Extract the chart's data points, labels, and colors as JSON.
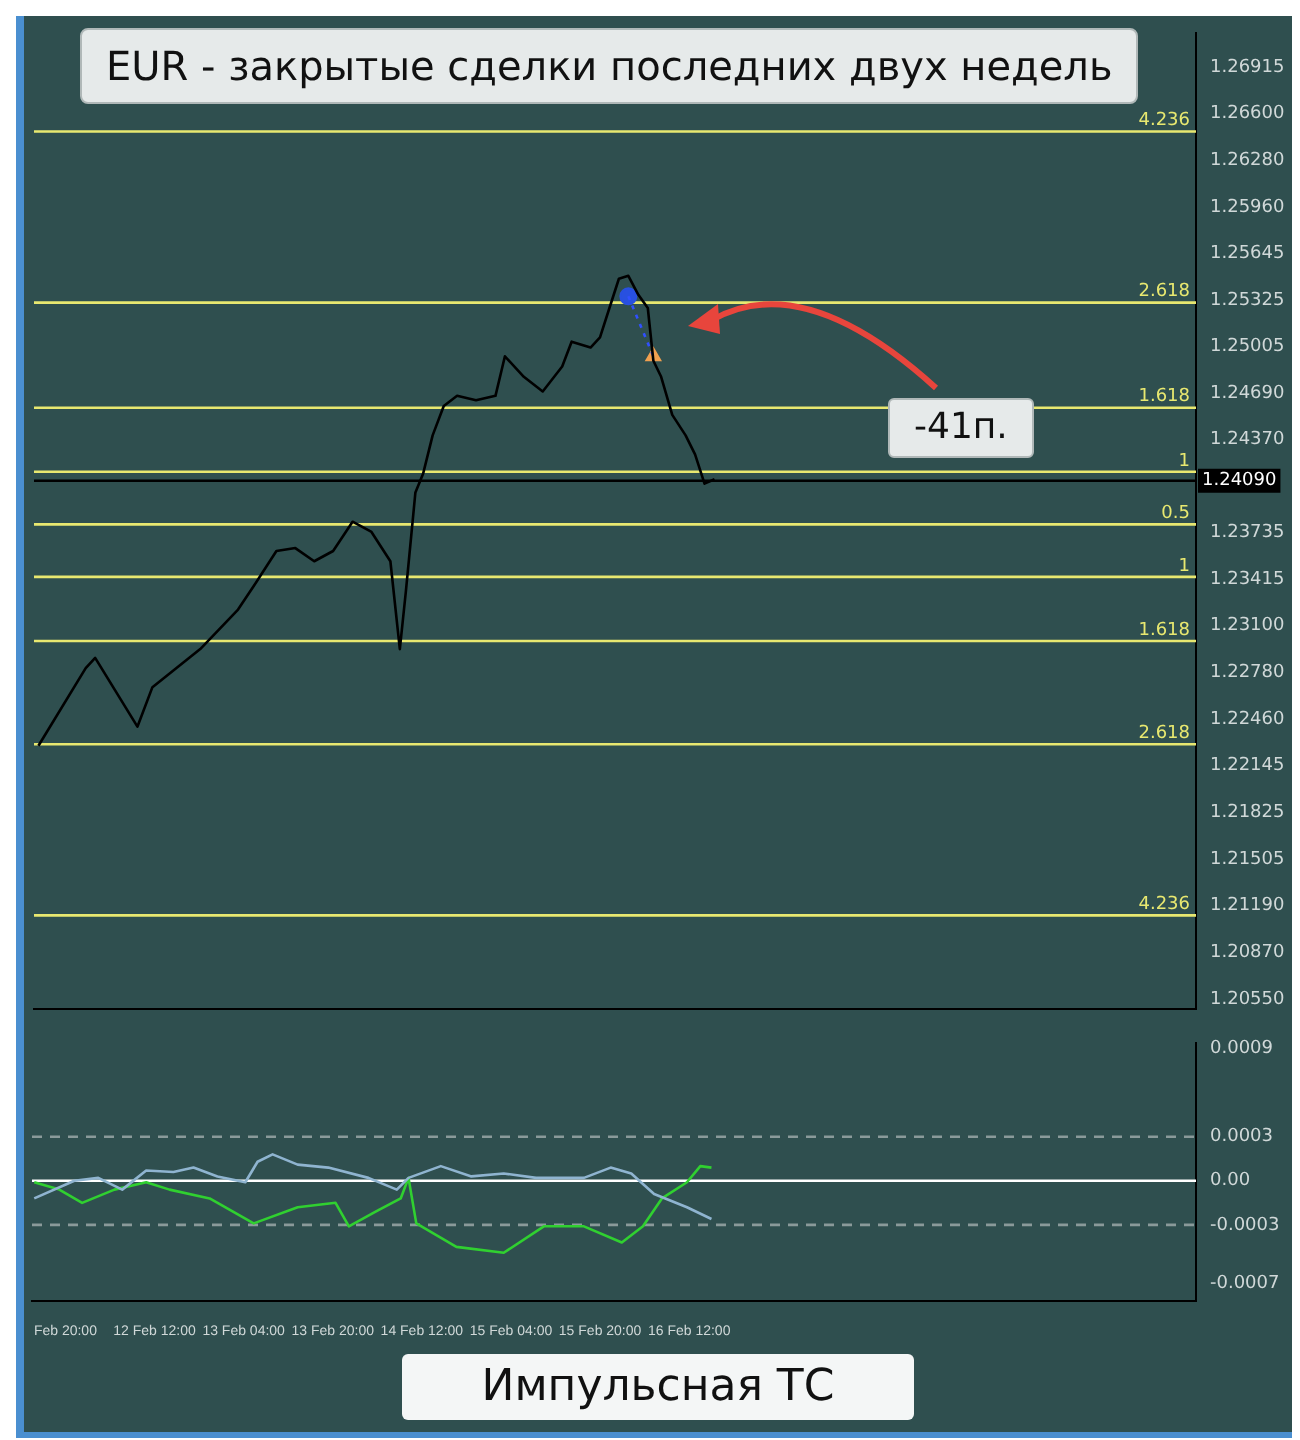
{
  "chart_data": [
    {
      "type": "line",
      "title": "EUR - закрытые сделки последних двух недель",
      "annotations": [
        "-41п.",
        {
          "text": "4.236",
          "x": "--02-20T07:00",
          "y": 1.26476
        },
        {
          "text": "2.618",
          "x": "--02-20T07:00",
          "y": 1.25307
        },
        {
          "text": "1.618",
          "x": "--02-20T07:00",
          "y": 1.24589
        },
        {
          "text": "1",
          "x": "--02-20T07:00",
          "y": 1.24151
        },
        {
          "text": "0.5",
          "x": "--02-20T07:00",
          "y": 1.23792
        },
        {
          "text": "1",
          "x": "--02-20T07:00",
          "y": 1.23433
        },
        {
          "text": "1.618",
          "x": "--02-20T07:00",
          "y": 1.22995
        },
        {
          "text": "2.618",
          "x": "--02-20T07:00",
          "y": 1.2229
        },
        {
          "text": "4.236",
          "x": "--02-20T07:00",
          "y": 1.21121
        }
      ],
      "xlim": [
        "--02-11T14:00",
        "--02-20T07:00"
      ],
      "ylim": [
        1.2048,
        1.2715
      ],
      "yticks": [
        1.26915,
        {
          "value": 1.266,
          "label": "1.26600"
        },
        {
          "value": 1.2628,
          "label": "1.26280"
        },
        {
          "value": 1.2596,
          "label": "1.25960"
        },
        1.25645,
        1.25325,
        1.25005,
        {
          "value": 1.2469,
          "label": "1.24690"
        },
        {
          "value": 1.2437,
          "label": "1.24370"
        },
        1.23735,
        1.23415,
        {
          "value": 1.231,
          "label": "1.23100"
        },
        {
          "value": 1.2278,
          "label": "1.22780"
        },
        {
          "value": 1.2246,
          "label": "1.22460"
        },
        1.22145,
        1.21825,
        1.21505,
        {
          "value": 1.2119,
          "label": "1.21190"
        },
        {
          "value": 1.2087,
          "label": "1.20870"
        },
        {
          "value": 1.2055,
          "label": "1.20550"
        }
      ],
      "tick_labels": "y",
      "grid": false,
      "legend": false,
      "series": [
        {
          "color": "#000000",
          "marker": "none",
          "x": [
            "--02-11T14:48",
            "--02-11T23:18",
            "--02-12T01:00",
            "--02-12T08:36",
            "--02-12T11:18",
            "--02-12T19:54",
            "--02-13T02:42",
            "--02-13T06:12",
            "--02-13T09:36",
            "--02-13T13:00",
            "--02-13T16:24",
            "--02-13T19:48",
            "--02-13T23:18",
            "--02-14T02:42",
            "--02-14T06:06",
            "--02-14T07:48",
            "--02-14T08:54",
            "--02-14T10:36",
            "--02-14T12:00",
            "--02-14T13:42",
            "--02-14T15:42",
            "--02-14T18:06",
            "--02-14T21:30",
            "--02-15T01:00",
            "--02-15T02:42",
            "--02-15T06:06",
            "--02-15T09:30",
            "--02-15T13:00",
            "--02-15T14:42",
            "--02-15T18:06",
            "--02-15T19:48",
            "--02-15T21:30",
            "--02-15T23:12",
            "--02-16T00:54",
            "--02-16T02:42",
            "--02-16T04:24",
            "--02-16T05:24",
            "--02-16T06:48",
            "--02-16T08:48",
            "--02-16T11:12",
            "--02-16T12:54",
            "--02-16T14:36",
            "--02-16T16:24"
          ],
          "values": [
            1.2228,
            1.2281,
            1.2288,
            1.2241,
            1.2268,
            1.2294,
            1.2321,
            1.2341,
            1.2361,
            1.2363,
            1.2354,
            1.2361,
            1.2381,
            1.2374,
            1.2354,
            1.2294,
            1.2334,
            1.2401,
            1.2414,
            1.244,
            1.246,
            1.2467,
            1.2464,
            1.2467,
            1.2494,
            1.248,
            1.247,
            1.2487,
            1.2504,
            1.25,
            1.2507,
            1.2527,
            1.2547,
            1.2549,
            1.2536,
            1.2527,
            1.2491,
            1.248,
            1.2454,
            1.244,
            1.2427,
            1.2407,
            1.241
          ]
        },
        {
          "color": "#3050ff",
          "line_style": "dotted",
          "marker": "none",
          "x": [
            "--02-16T00:54",
            "--02-16T05:24"
          ],
          "values": [
            1.2535,
            1.2494
          ]
        },
        {
          "type": "scatter",
          "color": "#2850e0",
          "marker": "circle",
          "x": [
            "--02-16T00:54"
          ],
          "values": [
            1.2535
          ]
        },
        {
          "type": "scatter",
          "color": "#f0a050",
          "marker": "triangle",
          "x": [
            "--02-16T05:24"
          ],
          "values": [
            1.2494
          ]
        }
      ],
      "ref_lines": [
        {
          "axis": "y",
          "value": 1.26476,
          "color": "#e8e870"
        },
        {
          "axis": "y",
          "value": 1.25307,
          "color": "#e8e870"
        },
        {
          "axis": "y",
          "value": 1.24589,
          "color": "#e8e870"
        },
        {
          "axis": "y",
          "value": 1.24151,
          "color": "#e8e870"
        },
        {
          "axis": "y",
          "value": 1.23792,
          "color": "#e8e870"
        },
        {
          "axis": "y",
          "value": 1.23433,
          "color": "#e8e870"
        },
        {
          "axis": "y",
          "value": 1.22995,
          "color": "#e8e870"
        },
        {
          "axis": "y",
          "value": 1.2229,
          "color": "#e8e870"
        },
        {
          "axis": "y",
          "value": 1.21121,
          "color": "#e8e870"
        },
        {
          "axis": "y",
          "value": 1.2409,
          "label": "1.24090",
          "color": "#000000"
        }
      ]
    },
    {
      "type": "line",
      "annotations": [
        "Импульсная ТС"
      ],
      "xlim": [
        "--02-11T14:00",
        "--02-20T07:00"
      ],
      "xticks": [
        {
          "value": "--02-11T20:00",
          "label": "Feb 20:00"
        },
        {
          "value": "--02-12T12:00",
          "label": "12 Feb 12:00"
        },
        {
          "value": "--02-13T04:00",
          "label": "13 Feb 04:00"
        },
        {
          "value": "--02-13T20:00",
          "label": "13 Feb 20:00"
        },
        {
          "value": "--02-14T12:00",
          "label": "14 Feb 12:00"
        },
        {
          "value": "--02-15T04:00",
          "label": "15 Feb 04:00"
        },
        {
          "value": "--02-15T20:00",
          "label": "15 Feb 20:00"
        },
        {
          "value": "--02-16T12:00",
          "label": "16 Feb 12:00"
        }
      ],
      "ylim": [
        -0.00082,
        0.00094
      ],
      "yticks": [
        0.0009,
        0.0003,
        {
          "value": 0,
          "label": "0.00"
        },
        -0.0003,
        -0.0007
      ],
      "grid": false,
      "legend": false,
      "series": [
        {
          "color": "#8fb4d0",
          "marker": "none",
          "x": [
            "--02-11T14:24",
            "--02-11T21:36",
            "--02-12T01:54",
            "--02-12T06:12",
            "--02-12T10:30",
            "--02-12T15:24",
            "--02-12T19:00",
            "--02-12T23:18",
            "--02-13T04:18",
            "--02-13T06:30",
            "--02-13T09:12",
            "--02-13T13:42",
            "--02-13T19:12",
            "--02-14T02:24",
            "--02-14T07:30",
            "--02-14T09:36",
            "--02-14T15:24",
            "--02-14T20:54",
            "--02-15T02:42",
            "--02-15T08:30",
            "--02-15T17:06",
            "--02-15T21:54",
            "--02-16T01:36",
            "--02-16T05:42",
            "--02-16T11:36",
            "--02-16T16:00"
          ],
          "values": [
            -0.00012,
            0.0,
            2e-05,
            -6e-05,
            7e-05,
            6e-05,
            9e-05,
            3e-05,
            -1e-05,
            0.00013,
            0.00018,
            0.00011,
            9e-05,
            2e-05,
            -6e-05,
            2e-05,
            0.0001,
            3e-05,
            5e-05,
            2e-05,
            2e-05,
            9e-05,
            5e-05,
            -9e-05,
            -0.00018,
            -0.00026
          ]
        },
        {
          "color": "#30d030",
          "marker": "none",
          "x": [
            "--02-11T14:24",
            "--02-11T18:54",
            "--02-11T23:00",
            "--02-12T04:48",
            "--02-12T10:30",
            "--02-12T14:42",
            "--02-12T21:54",
            "--02-13T05:48",
            "--02-13T13:42",
            "--02-13T20:30",
            "--02-13T22:54",
            "--02-14T03:42",
            "--02-14T08:12",
            "--02-14T09:36",
            "--02-14T11:00",
            "--02-14T18:12",
            "--02-15T02:42",
            "--02-15T09:54",
            "--02-15T17:06",
            "--02-15T23:54",
            "--02-16T03:42",
            "--02-16T07:06",
            "--02-16T11:36",
            "--02-16T14:00",
            "--02-16T16:00"
          ],
          "values": [
            -1e-05,
            -6e-05,
            -0.00015,
            -6e-05,
            -1e-05,
            -6e-05,
            -0.00012,
            -0.00029,
            -0.00018,
            -0.00015,
            -0.00031,
            -0.00021,
            -0.00012,
            2e-05,
            -0.00029,
            -0.00045,
            -0.00049,
            -0.00031,
            -0.00031,
            -0.00042,
            -0.00031,
            -0.00012,
            -1e-05,
            0.0001,
            9e-05
          ]
        }
      ],
      "ref_lines": [
        {
          "axis": "y",
          "value": 0.0003,
          "color": "#8a9a9a",
          "line_style": "dashed"
        },
        {
          "axis": "y",
          "value": 0,
          "color": "#ffffff"
        },
        {
          "axis": "y",
          "value": -0.0003,
          "color": "#8a9a9a",
          "line_style": "dashed"
        }
      ]
    }
  ]
}
